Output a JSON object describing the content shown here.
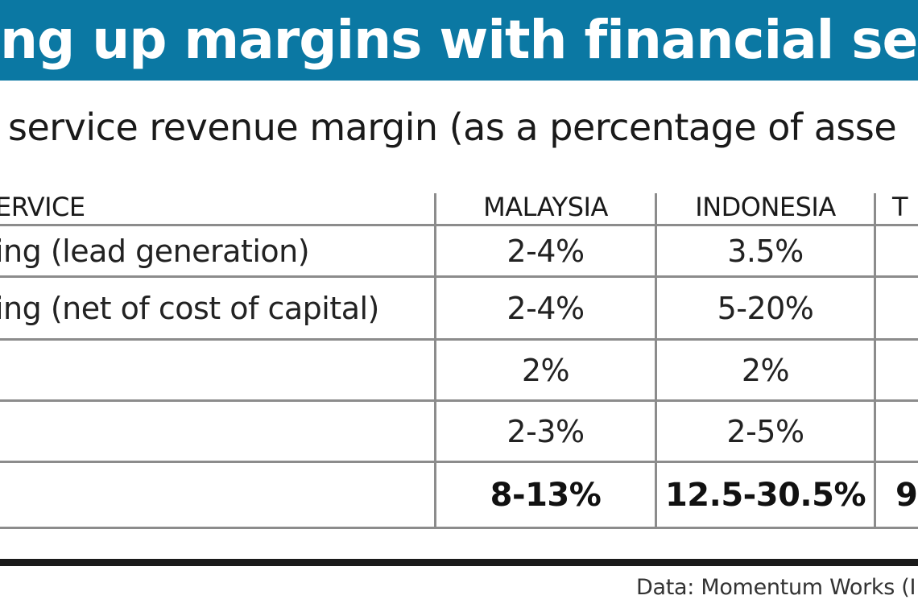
{
  "header": {
    "title": "ng up margins with financial ser",
    "subtitle": "service revenue margin (as a percentage of asse"
  },
  "chart_data": {
    "type": "table",
    "columns": [
      "ERVICE",
      "MALAYSIA",
      "INDONESIA",
      "T"
    ],
    "rows": [
      {
        "service": "ing (lead generation)",
        "malaysia": "2-4%",
        "indonesia": "3.5%",
        "fourth": ""
      },
      {
        "service": "ing (net of cost of capital)",
        "malaysia": "2-4%",
        "indonesia": "5-20%",
        "fourth": ""
      },
      {
        "service": "",
        "malaysia": "2%",
        "indonesia": "2%",
        "fourth": ""
      },
      {
        "service": "",
        "malaysia": "2-3%",
        "indonesia": "2-5%",
        "fourth": ""
      },
      {
        "service": "",
        "malaysia": "8-13%",
        "indonesia": "12.5-30.5%",
        "fourth": "9"
      }
    ]
  },
  "footer": {
    "source": "Data: Momentum Works (I"
  },
  "colors": {
    "banner": "#0b78a3",
    "rule": "#1a1a1a",
    "grid": "#8c8c8c"
  }
}
